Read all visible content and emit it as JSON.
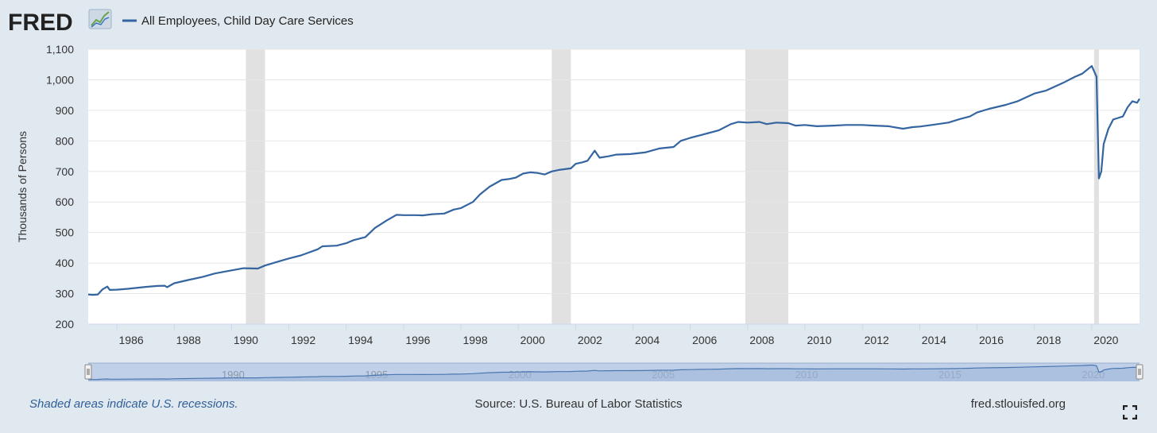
{
  "header": {
    "logo_text": "FRED",
    "legend_label": "All Employees, Child Day Care Services"
  },
  "colors": {
    "background": "#e1e9f0",
    "series": "#3465a0",
    "recession": "#e1e1e1",
    "navigator_fill": "#bfd0e8",
    "navigator_line": "#4a77b0"
  },
  "icons": {
    "logo_graph": "trend-chart-icon",
    "fullscreen": "expand-corners-icon",
    "nav_handle": "grip-handle-icon"
  },
  "footer": {
    "recessions_note": "Shaded areas indicate U.S. recessions.",
    "source": "Source: U.S. Bureau of Labor Statistics",
    "site": "fred.stlouisfed.org"
  },
  "chart_data": {
    "type": "line",
    "title": "",
    "xlabel": "",
    "ylabel": "Thousands of Persons",
    "xlim": [
      "1985-01",
      "2021-09"
    ],
    "ylim": [
      200,
      1100
    ],
    "yticks": [
      200,
      300,
      400,
      500,
      600,
      700,
      800,
      900,
      1000,
      1100
    ],
    "ytick_labels": [
      "200",
      "300",
      "400",
      "500",
      "600",
      "700",
      "800",
      "900",
      "1,000",
      "1,100"
    ],
    "xticks": [
      "1986",
      "1988",
      "1990",
      "1992",
      "1994",
      "1996",
      "1998",
      "2000",
      "2002",
      "2004",
      "2006",
      "2008",
      "2010",
      "2012",
      "2014",
      "2016",
      "2018",
      "2020"
    ],
    "navigator_ticks": [
      "1990",
      "1995",
      "2000",
      "2005",
      "2010",
      "2015",
      "2020"
    ],
    "grid": true,
    "legend": "top-left",
    "recessions": [
      [
        "1990-07",
        "1991-03"
      ],
      [
        "2001-03",
        "2001-11"
      ],
      [
        "2007-12",
        "2009-06"
      ],
      [
        "2020-02",
        "2020-04"
      ]
    ],
    "series": [
      {
        "name": "All Employees, Child Day Care Services",
        "points": [
          [
            "1985-01",
            297
          ],
          [
            "1985-03",
            296
          ],
          [
            "1985-05",
            297
          ],
          [
            "1985-07",
            314
          ],
          [
            "1985-09",
            323
          ],
          [
            "1985-10",
            312
          ],
          [
            "1986-01",
            313
          ],
          [
            "1986-06",
            316
          ],
          [
            "1987-01",
            322
          ],
          [
            "1987-06",
            325
          ],
          [
            "1987-09",
            326
          ],
          [
            "1987-10",
            321
          ],
          [
            "1988-01",
            334
          ],
          [
            "1988-06",
            343
          ],
          [
            "1989-01",
            355
          ],
          [
            "1989-06",
            366
          ],
          [
            "1990-01",
            376
          ],
          [
            "1990-06",
            383
          ],
          [
            "1990-12",
            382
          ],
          [
            "1991-03",
            392
          ],
          [
            "1991-09",
            406
          ],
          [
            "1992-01",
            415
          ],
          [
            "1992-06",
            425
          ],
          [
            "1993-01",
            445
          ],
          [
            "1993-03",
            455
          ],
          [
            "1993-09",
            457
          ],
          [
            "1994-01",
            465
          ],
          [
            "1994-04",
            475
          ],
          [
            "1994-09",
            485
          ],
          [
            "1995-01",
            515
          ],
          [
            "1995-06",
            540
          ],
          [
            "1995-10",
            558
          ],
          [
            "1996-01",
            557
          ],
          [
            "1996-06",
            557
          ],
          [
            "1996-09",
            556
          ],
          [
            "1997-01",
            560
          ],
          [
            "1997-06",
            562
          ],
          [
            "1997-10",
            575
          ],
          [
            "1998-01",
            580
          ],
          [
            "1998-06",
            600
          ],
          [
            "1998-09",
            625
          ],
          [
            "1999-01",
            650
          ],
          [
            "1999-06",
            672
          ],
          [
            "1999-09",
            675
          ],
          [
            "1999-12",
            680
          ],
          [
            "2000-03",
            693
          ],
          [
            "2000-06",
            697
          ],
          [
            "2000-09",
            695
          ],
          [
            "2000-12",
            690
          ],
          [
            "2001-03",
            700
          ],
          [
            "2001-06",
            705
          ],
          [
            "2001-11",
            710
          ],
          [
            "2002-01",
            725
          ],
          [
            "2002-04",
            730
          ],
          [
            "2002-06",
            735
          ],
          [
            "2002-09",
            768
          ],
          [
            "2002-11",
            745
          ],
          [
            "2003-03",
            750
          ],
          [
            "2003-06",
            755
          ],
          [
            "2003-12",
            757
          ],
          [
            "2004-06",
            762
          ],
          [
            "2004-12",
            775
          ],
          [
            "2005-06",
            780
          ],
          [
            "2005-09",
            800
          ],
          [
            "2006-01",
            810
          ],
          [
            "2006-06",
            820
          ],
          [
            "2007-01",
            835
          ],
          [
            "2007-06",
            855
          ],
          [
            "2007-09",
            862
          ],
          [
            "2008-01",
            860
          ],
          [
            "2008-06",
            862
          ],
          [
            "2008-09",
            855
          ],
          [
            "2009-01",
            860
          ],
          [
            "2009-06",
            858
          ],
          [
            "2009-09",
            850
          ],
          [
            "2010-01",
            852
          ],
          [
            "2010-06",
            848
          ],
          [
            "2011-01",
            850
          ],
          [
            "2011-06",
            852
          ],
          [
            "2012-01",
            852
          ],
          [
            "2012-06",
            850
          ],
          [
            "2012-12",
            848
          ],
          [
            "2013-06",
            840
          ],
          [
            "2013-10",
            845
          ],
          [
            "2014-01",
            847
          ],
          [
            "2014-06",
            852
          ],
          [
            "2015-01",
            860
          ],
          [
            "2015-06",
            872
          ],
          [
            "2015-10",
            880
          ],
          [
            "2016-01",
            893
          ],
          [
            "2016-06",
            905
          ],
          [
            "2017-01",
            918
          ],
          [
            "2017-06",
            930
          ],
          [
            "2018-01",
            955
          ],
          [
            "2018-06",
            965
          ],
          [
            "2019-01",
            990
          ],
          [
            "2019-06",
            1010
          ],
          [
            "2019-09",
            1020
          ],
          [
            "2020-01",
            1045
          ],
          [
            "2020-03",
            1010
          ],
          [
            "2020-04",
            677
          ],
          [
            "2020-05",
            700
          ],
          [
            "2020-06",
            790
          ],
          [
            "2020-08",
            840
          ],
          [
            "2020-10",
            870
          ],
          [
            "2020-12",
            875
          ],
          [
            "2021-02",
            880
          ],
          [
            "2021-04",
            910
          ],
          [
            "2021-06",
            930
          ],
          [
            "2021-08",
            925
          ],
          [
            "2021-09",
            938
          ]
        ]
      }
    ]
  }
}
